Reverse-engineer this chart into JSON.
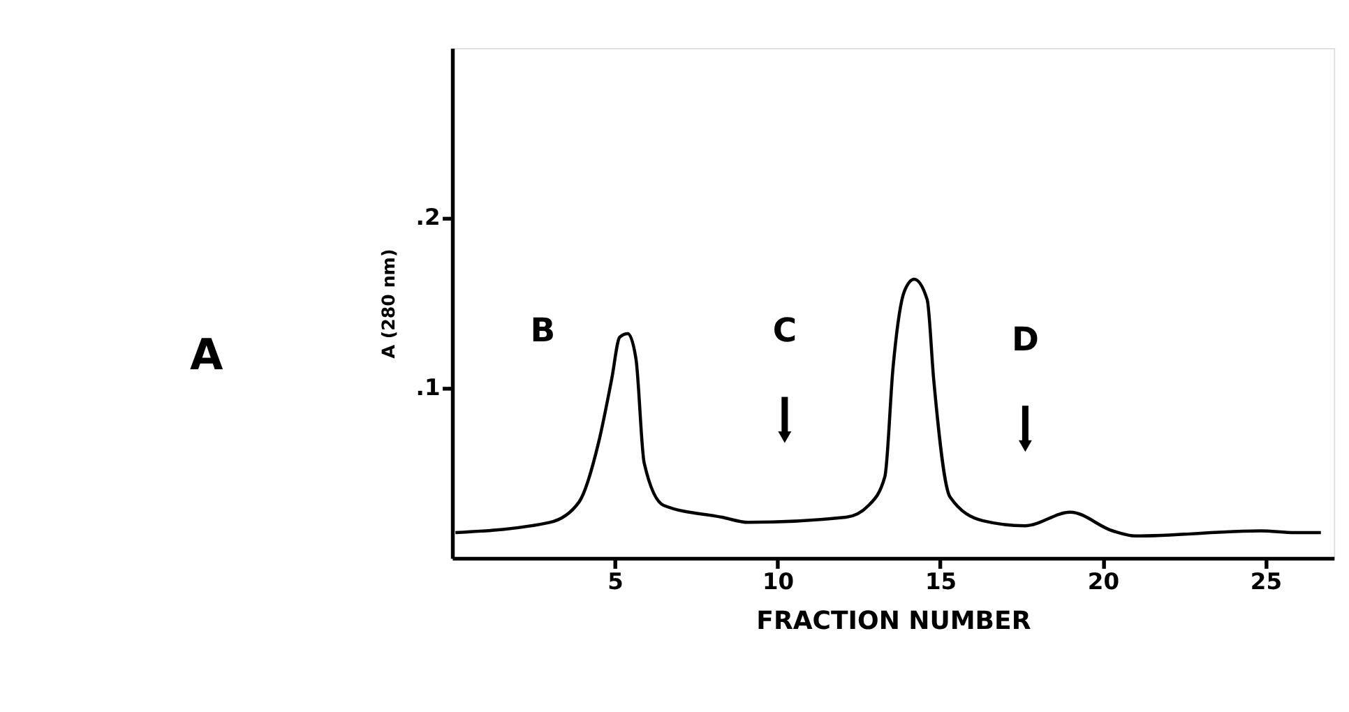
{
  "chart_data": {
    "type": "line",
    "xlabel": "FRACTION NUMBER",
    "ylabel": "A (280 nm)",
    "x": [
      0.1,
      3.0,
      3.9,
      4.5,
      4.9,
      5.15,
      5.4,
      5.65,
      5.9,
      6.5,
      8.3,
      9.1,
      12.1,
      12.8,
      13.3,
      13.55,
      13.9,
      14.2,
      14.6,
      14.8,
      15.3,
      16.3,
      17.6,
      19.0,
      20.3,
      21.0,
      24.85,
      25.9,
      26.7
    ],
    "series": [
      {
        "color": "#000000",
        "values": [
          0.015,
          0.021,
          0.033,
          0.068,
          0.105,
          0.13,
          0.132,
          0.117,
          0.056,
          0.031,
          0.024,
          0.021,
          0.024,
          0.031,
          0.048,
          0.112,
          0.157,
          0.164,
          0.152,
          0.105,
          0.036,
          0.022,
          0.019,
          0.027,
          0.016,
          0.013,
          0.016,
          0.015,
          0.015
        ]
      }
    ],
    "xlim": [
      0,
      27.1
    ],
    "ylim": [
      0,
      0.3
    ],
    "xticks": [
      5,
      10,
      15,
      20,
      25
    ],
    "yticks": [
      {
        "value": 0.1,
        "label": ".1"
      },
      {
        "value": 0.2,
        "label": ".2"
      }
    ],
    "annotations": [
      "A",
      "B",
      "C",
      "D"
    ],
    "grid": false,
    "marker": "none",
    "line_style": "solid"
  }
}
